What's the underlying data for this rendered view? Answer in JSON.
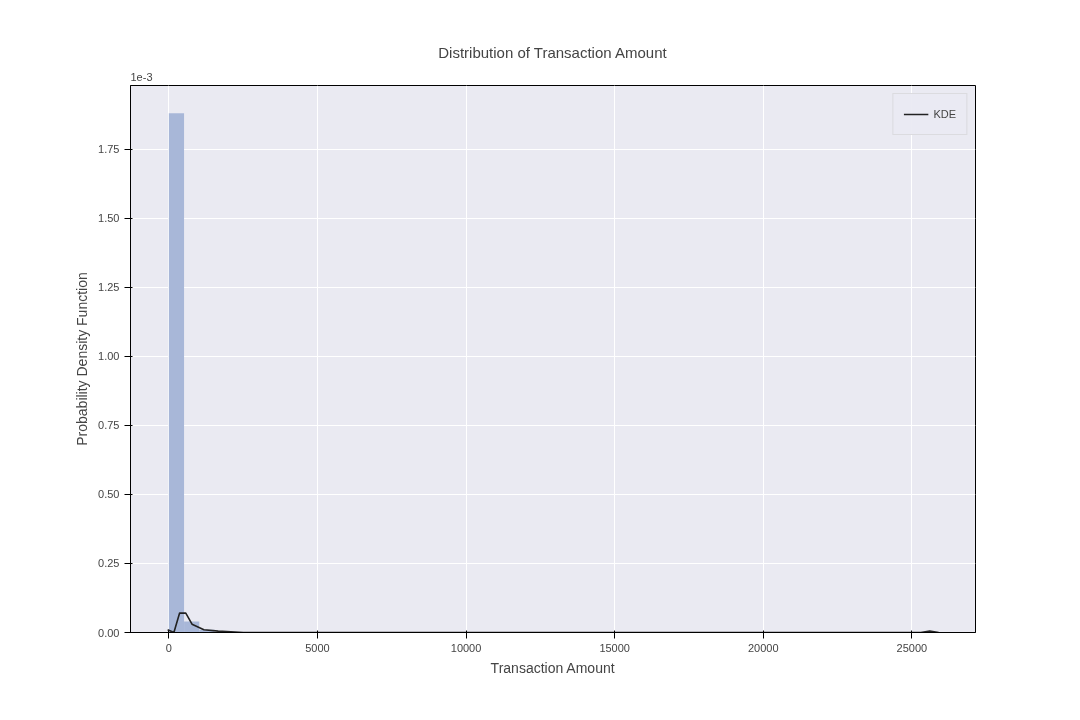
{
  "chart_data": {
    "type": "histogram",
    "title": "Distribution of Transaction Amount",
    "xlabel": "Transaction Amount",
    "ylabel": "Probability Density Function",
    "annotations": [
      "1e-3"
    ],
    "bins": [
      0,
      512,
      1024,
      1536,
      2048,
      2560,
      3072,
      3584,
      4096,
      4608,
      5120,
      5632,
      6144,
      6656,
      7168,
      7680,
      8192,
      8704,
      9216,
      9728,
      10240,
      10752,
      11264,
      11776,
      12288,
      12800,
      13312,
      13824,
      14336,
      14848,
      15360,
      15872,
      16384,
      16896,
      17408,
      17920,
      18432,
      18944,
      19456,
      19968,
      20480,
      20992,
      21504,
      22016,
      22528,
      23040,
      23552,
      24064,
      24576,
      25088,
      25600
    ],
    "values": [
      1.88,
      0.04,
      0.01,
      0,
      0,
      0,
      0,
      0,
      0,
      0,
      0,
      0,
      0,
      0,
      0,
      0,
      0,
      0,
      0,
      0,
      0,
      0,
      0,
      0,
      0,
      0,
      0,
      0,
      0,
      0,
      0,
      0,
      0,
      0,
      0,
      0,
      0,
      0,
      0,
      0,
      0,
      0,
      0,
      0,
      0,
      0,
      0,
      0,
      0,
      0
    ],
    "color": "#a8b7d8",
    "series": [
      {
        "name": "KDE",
        "type": "line",
        "color": "#222222",
        "x": [
          -40,
          170,
          360,
          570,
          780,
          1180,
          1660,
          2510,
          3500,
          24800,
          25300,
          25600,
          25900
        ],
        "values": [
          0.01,
          0,
          0.07,
          0.07,
          0.03,
          0.01,
          0.005,
          0,
          0,
          0,
          0,
          0.005,
          0
        ]
      }
    ],
    "xlim": [
      -1290,
      27140
    ],
    "ylim": [
      0,
      1.98
    ],
    "xticks": [
      0,
      5000,
      10000,
      15000,
      20000,
      25000
    ],
    "yticks": [
      {
        "value": 0,
        "label": "0.00"
      },
      0.25,
      {
        "value": 0.5,
        "label": "0.50"
      },
      0.75,
      {
        "value": 1,
        "label": "1.00"
      },
      1.25,
      {
        "value": 1.5,
        "label": "1.50"
      },
      1.75
    ],
    "grid": true,
    "legend": "top right"
  }
}
